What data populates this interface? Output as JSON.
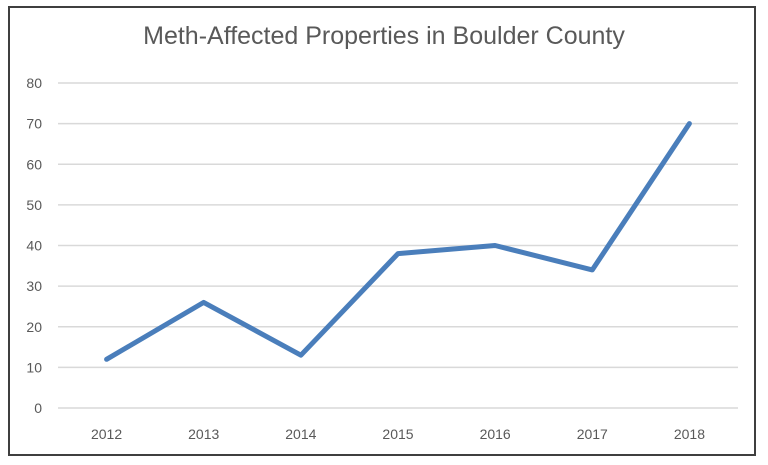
{
  "chart_data": {
    "type": "line",
    "title": "Meth-Affected Properties in Boulder County",
    "xlabel": "",
    "ylabel": "",
    "categories": [
      "2012",
      "2013",
      "2014",
      "2015",
      "2016",
      "2017",
      "2018"
    ],
    "series": [
      {
        "name": "Meth-Affected Properties",
        "values": [
          12,
          26,
          13,
          38,
          40,
          34,
          70
        ],
        "color": "#4a7ebb"
      }
    ],
    "yticks": [
      0,
      10,
      20,
      30,
      40,
      50,
      60,
      70,
      80
    ],
    "ylim": [
      0,
      80
    ],
    "grid": true,
    "legend": "none"
  },
  "colors": {
    "line": "#4a7ebb",
    "grid": "#d9d9d9",
    "text": "#595959",
    "border": "#3f3f3f"
  }
}
